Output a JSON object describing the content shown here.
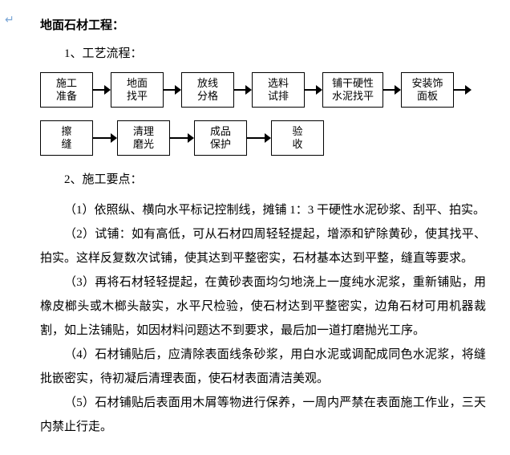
{
  "margin_marker": "↵",
  "title": "地面石材工程：",
  "sub1": "1、工艺流程：",
  "flow": {
    "row1": [
      {
        "text": "施工\n准备",
        "w": "n"
      },
      {
        "text": "地面\n找平",
        "w": "n"
      },
      {
        "text": "放线\n分格",
        "w": "n"
      },
      {
        "text": "选料\n试排",
        "w": "n"
      },
      {
        "text": "铺干硬性\n水泥找平",
        "w": "w"
      },
      {
        "text": "安装饰\n面板",
        "w": "n"
      }
    ],
    "row2": [
      {
        "text": "擦\n缝",
        "w": "n"
      },
      {
        "text": "清理\n磨光",
        "w": "n"
      },
      {
        "text": "成品\n保护",
        "w": "n"
      },
      {
        "text": "验\n收",
        "w": "n"
      }
    ],
    "trailing_arrow_row1": true
  },
  "sub2": "2、施工要点：",
  "paras": [
    "（1）依照纵、横向水平标记控制线，摊铺 1：3 干硬性水泥砂浆、刮平、拍实。",
    "（2）试铺：如有高低，可从石材四周轻轻提起，增添和铲除黄砂，使其找平、拍实。这样反复数次试铺，使其达到平整密实，石材基本达到平整，缝直等要求。",
    "（3）再将石材轻轻提起，在黄砂表面均匀地浇上一度纯水泥浆，重新铺贴，用橡皮榔头或木榔头敲实，水平尺检验，使石材达到平整密实，边角石材可用机器裁割，如上法铺贴，如因材料问题达不到要求，最后加一道打磨抛光工序。",
    "（4）石材铺贴后，应清除表面线条砂浆，用白水泥或调配成同色水泥浆，将缝批嵌密实，待初凝后清理表面，使石材表面清洁美观。",
    "（5）石材铺贴后表面用木屑等物进行保养，一周内严禁在表面施工作业，三天内禁止行走。"
  ]
}
